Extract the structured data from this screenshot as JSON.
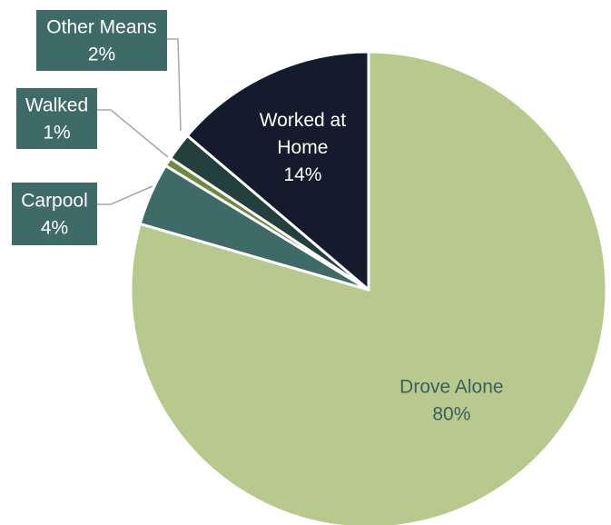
{
  "chart_data": {
    "type": "pie",
    "start_angle_deg": 0,
    "direction": "clockwise",
    "slices": [
      {
        "label": "Drove Alone",
        "value_label": "80%",
        "value": 80.1,
        "color": "#b7c98d",
        "text_color": "#3d5f5f",
        "label_style": "inside",
        "label_lines": [
          "Drove Alone"
        ]
      },
      {
        "label": "Carpool",
        "value_label": "4%",
        "value": 4.3,
        "color": "#3e6b68",
        "text_color": "#ffffff",
        "label_style": "callout",
        "label_lines": [
          "Carpool"
        ]
      },
      {
        "label": "Walked",
        "value_label": "1%",
        "value": 0.6,
        "color": "#6e8a3c",
        "text_color": "#ffffff",
        "label_style": "callout",
        "label_lines": [
          "Walked"
        ]
      },
      {
        "label": "Other Means",
        "value_label": "2%",
        "value": 1.9,
        "color": "#24403c",
        "text_color": "#ffffff",
        "label_style": "callout",
        "label_lines": [
          "Other Means"
        ]
      },
      {
        "label": "Worked at Home",
        "value_label": "14%",
        "value": 13.9,
        "color": "#141b2d",
        "text_color": "#ffffff",
        "label_style": "inside",
        "label_lines": [
          "Worked at",
          "Home"
        ]
      }
    ],
    "callout_box_color": "#3e6b68",
    "legend": "none"
  }
}
